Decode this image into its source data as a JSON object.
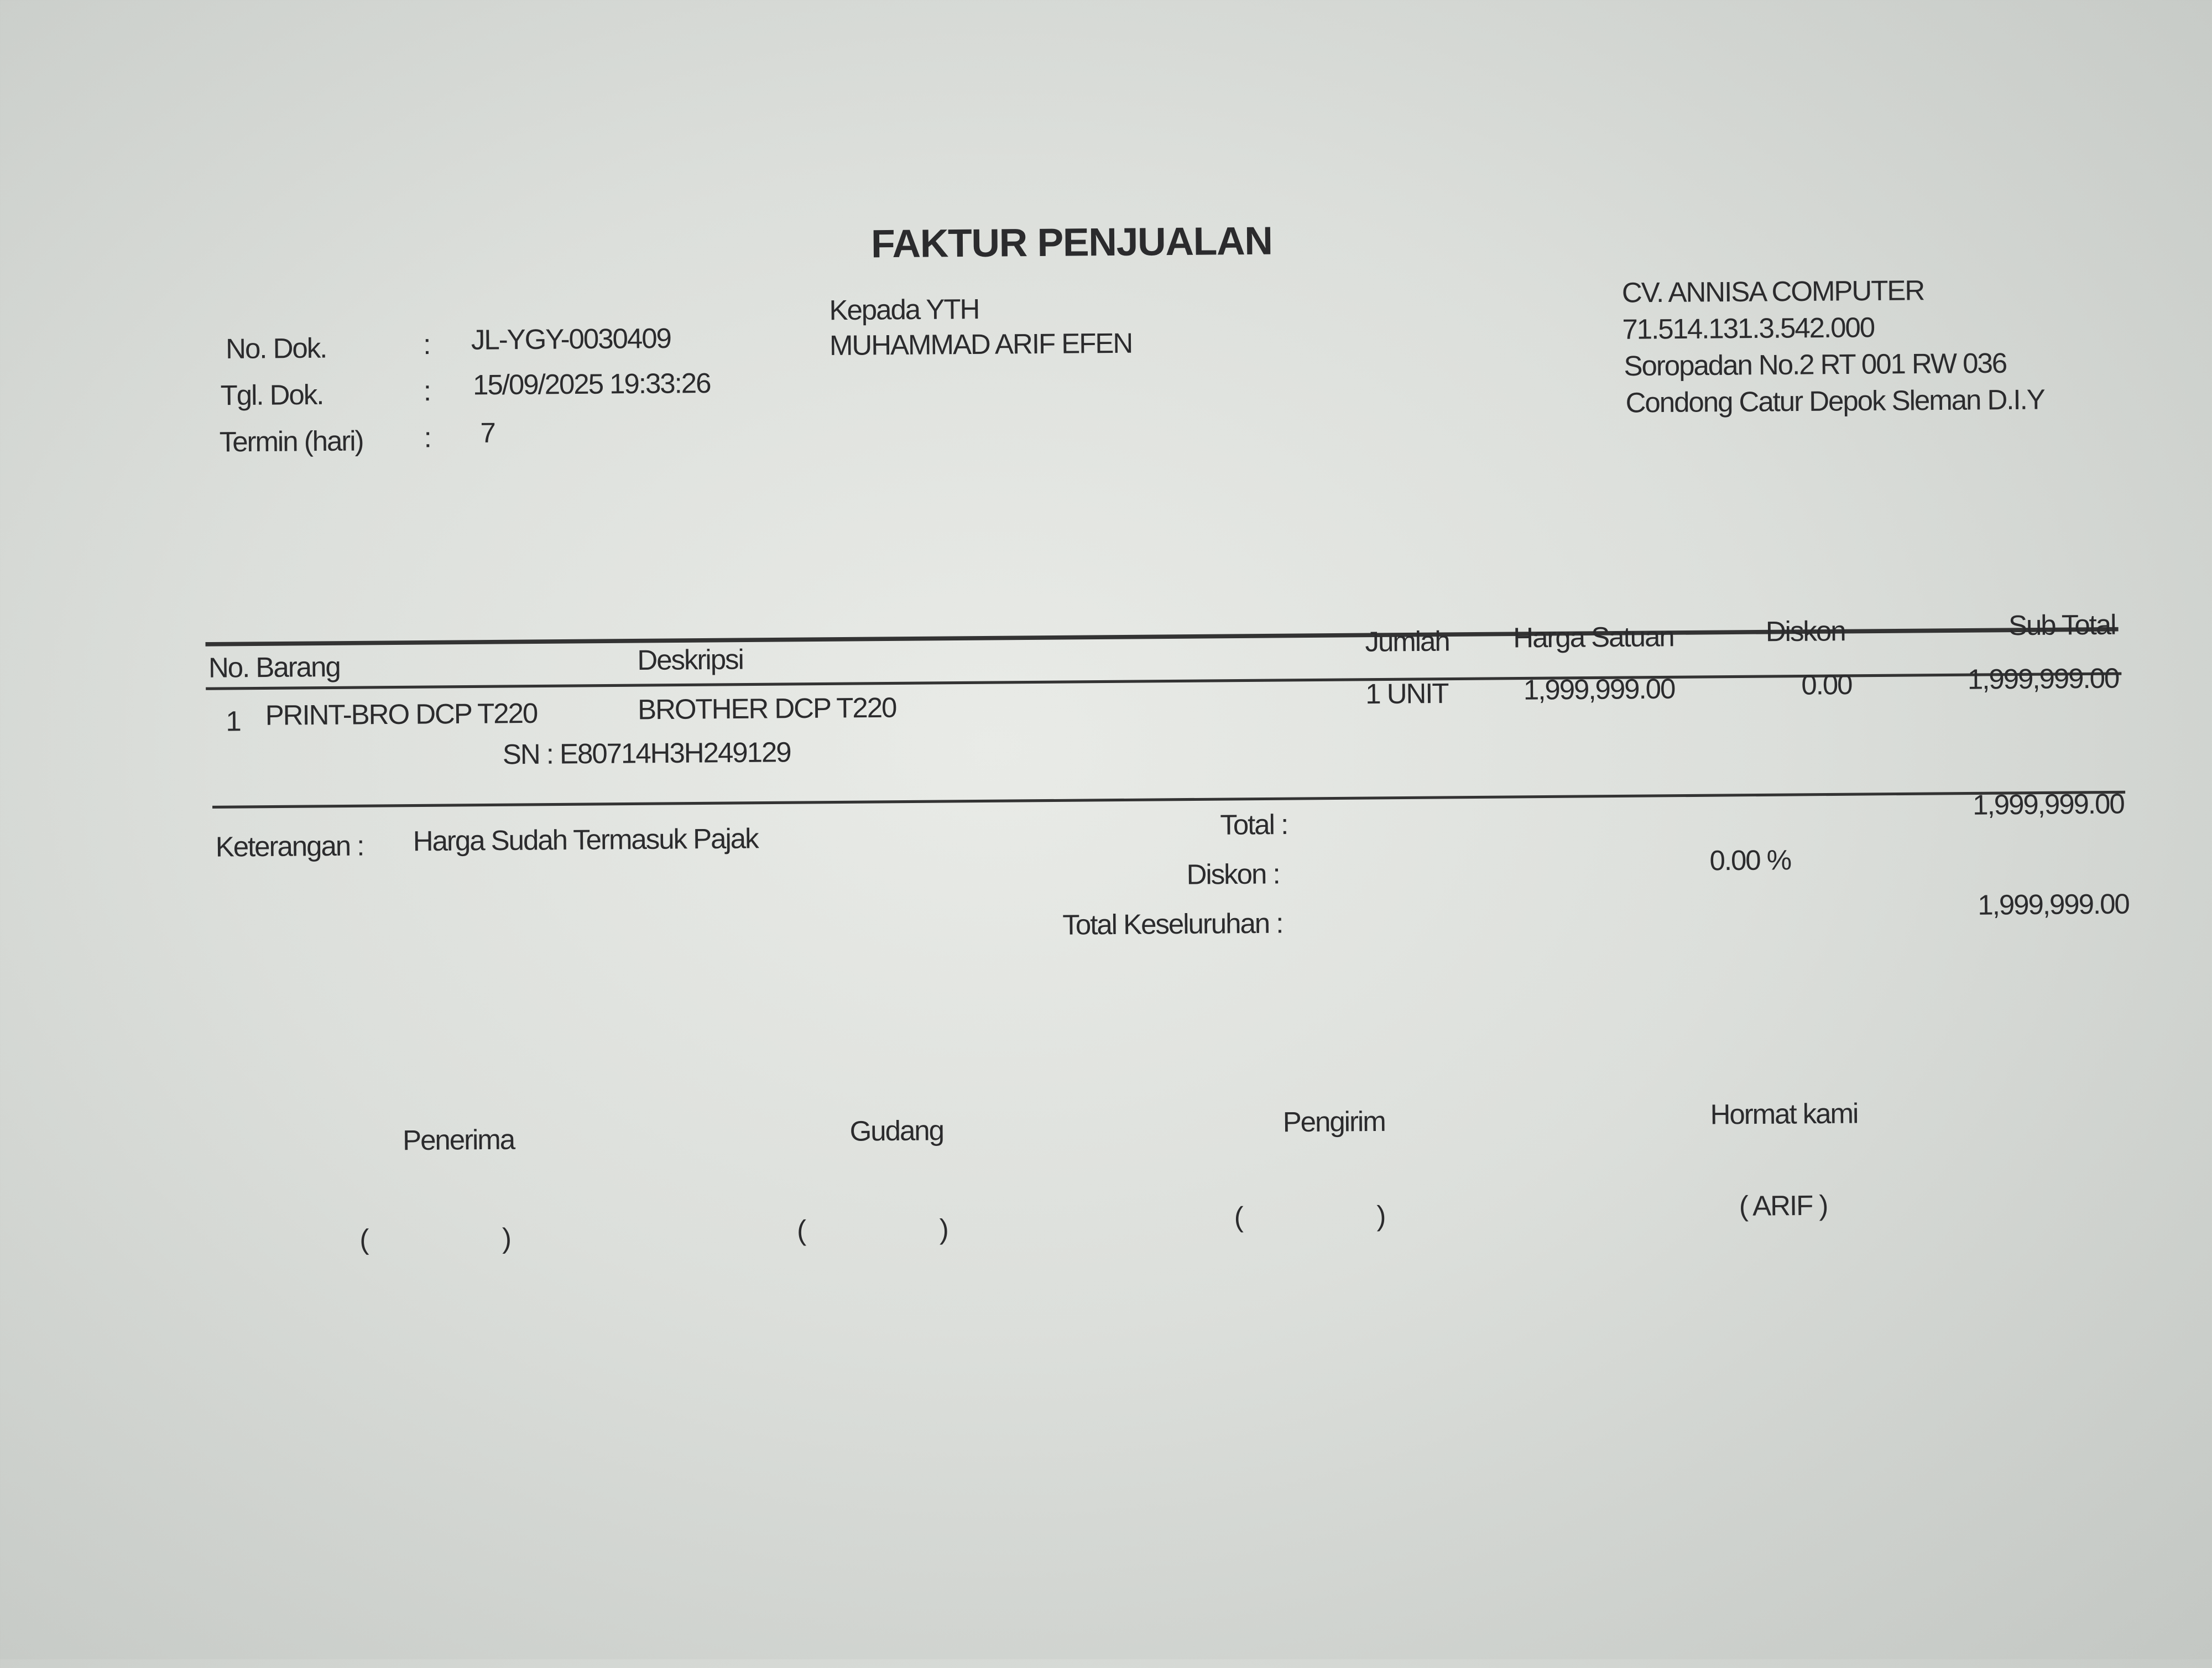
{
  "title": "FAKTUR PENJUALAN",
  "doc_info": {
    "no_dok_label": "No. Dok.",
    "no_dok": "JL-YGY-0030409",
    "tgl_dok_label": "Tgl. Dok.",
    "tgl_dok": "15/09/2025 19:33:26",
    "termin_label": "Termin (hari)",
    "termin": "7",
    "colon": ":"
  },
  "recipient": {
    "label": "Kepada YTH",
    "name": "MUHAMMAD ARIF EFEN"
  },
  "company": {
    "name": "CV. ANNISA COMPUTER",
    "npwp": "71.514.131.3.542.000",
    "address1": "Soropadan No.2  RT 001 RW 036",
    "address2": "Condong Catur Depok Sleman D.I.Y"
  },
  "table": {
    "headers": [
      "No. Barang",
      "Deskripsi",
      "Jumlah",
      "Harga Satuan",
      "Diskon",
      "Sub Total"
    ],
    "rows": [
      {
        "no": "1",
        "kode": "PRINT-BRO DCP T220",
        "deskripsi": "BROTHER DCP T220",
        "sn": "SN  : E80714H3H249129",
        "jumlah": "1 UNIT",
        "harga": "1,999,999.00",
        "diskon": "0.00",
        "subtotal": "1,999,999.00"
      }
    ]
  },
  "summary": {
    "keterangan_label": "Keterangan :",
    "keterangan": "Harga Sudah Termasuk Pajak",
    "total_label": "Total :",
    "total": "1,999,999.00",
    "diskon_label": "Diskon :",
    "diskon": "0.00  %",
    "grand_label": "Total Keseluruhan :",
    "grand": "1,999,999.00"
  },
  "signatures": [
    {
      "label": "Penerima",
      "name": "(                    )"
    },
    {
      "label": "Gudang",
      "name": "(                    )"
    },
    {
      "label": "Pengirim",
      "name": "(                    )"
    },
    {
      "label": "Hormat kami",
      "name": "( ARIF )"
    }
  ]
}
